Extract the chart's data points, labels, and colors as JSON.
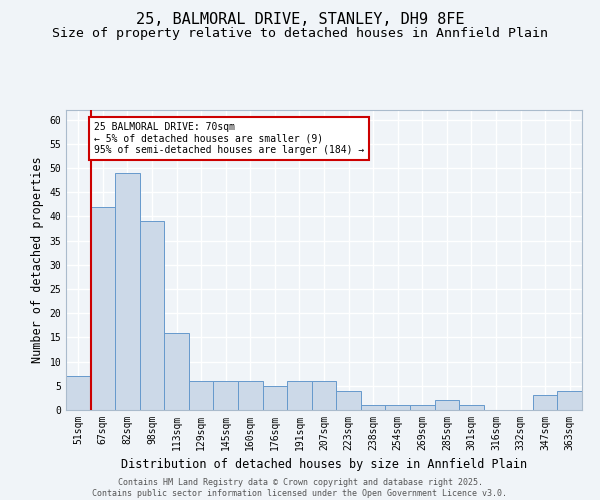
{
  "title_line1": "25, BALMORAL DRIVE, STANLEY, DH9 8FE",
  "title_line2": "Size of property relative to detached houses in Annfield Plain",
  "xlabel": "Distribution of detached houses by size in Annfield Plain",
  "ylabel": "Number of detached properties",
  "categories": [
    "51sqm",
    "67sqm",
    "82sqm",
    "98sqm",
    "113sqm",
    "129sqm",
    "145sqm",
    "160sqm",
    "176sqm",
    "191sqm",
    "207sqm",
    "223sqm",
    "238sqm",
    "254sqm",
    "269sqm",
    "285sqm",
    "301sqm",
    "316sqm",
    "332sqm",
    "347sqm",
    "363sqm"
  ],
  "values": [
    7,
    42,
    49,
    39,
    16,
    6,
    6,
    6,
    5,
    6,
    6,
    4,
    1,
    1,
    1,
    2,
    1,
    0,
    0,
    3,
    4
  ],
  "bar_color": "#ccd9e8",
  "bar_edge_color": "#6699cc",
  "vline_color": "#cc0000",
  "vline_x": 0.5,
  "annotation_text_line1": "25 BALMORAL DRIVE: 70sqm",
  "annotation_text_line2": "← 5% of detached houses are smaller (9)",
  "annotation_text_line3": "95% of semi-detached houses are larger (184) →",
  "annotation_box_color": "white",
  "annotation_border_color": "#cc0000",
  "ylim": [
    0,
    62
  ],
  "yticks": [
    0,
    5,
    10,
    15,
    20,
    25,
    30,
    35,
    40,
    45,
    50,
    55,
    60
  ],
  "footnote": "Contains HM Land Registry data © Crown copyright and database right 2025.\nContains public sector information licensed under the Open Government Licence v3.0.",
  "bg_color": "#f0f4f8",
  "plot_bg_color": "#f0f4f8",
  "grid_color": "#ffffff",
  "title_fontsize": 11,
  "subtitle_fontsize": 9.5,
  "axis_label_fontsize": 8.5,
  "tick_fontsize": 7,
  "footnote_fontsize": 6,
  "footnote_color": "#555555"
}
